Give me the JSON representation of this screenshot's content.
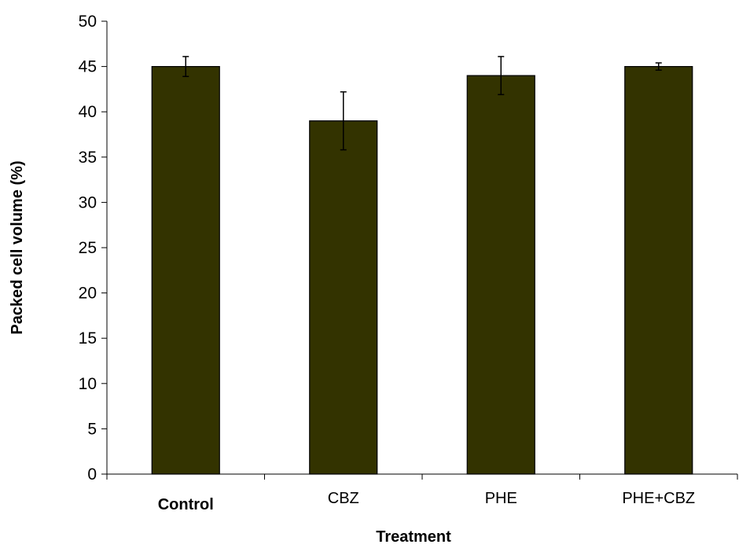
{
  "chart_data": {
    "type": "bar",
    "title": "",
    "xlabel": "Treatment",
    "ylabel": "Packed cell volume (%)",
    "categories": [
      "Control",
      "CBZ",
      "PHE",
      "PHE+CBZ"
    ],
    "category_bold": [
      true,
      false,
      false,
      false
    ],
    "values": [
      45,
      39,
      44,
      45
    ],
    "error_upper": [
      46.1,
      42.2,
      46.1,
      45.4
    ],
    "error_lower": [
      43.9,
      35.8,
      41.9,
      44.6
    ],
    "ylim": [
      0,
      50
    ],
    "y_ticks": [
      0,
      5,
      10,
      15,
      20,
      25,
      30,
      35,
      40,
      45,
      50
    ],
    "grid": false,
    "legend": "none",
    "colors": {
      "bar_fill": "#333300",
      "bar_stroke": "#000000",
      "axis": "#000000",
      "error_bar": "#000000"
    }
  }
}
